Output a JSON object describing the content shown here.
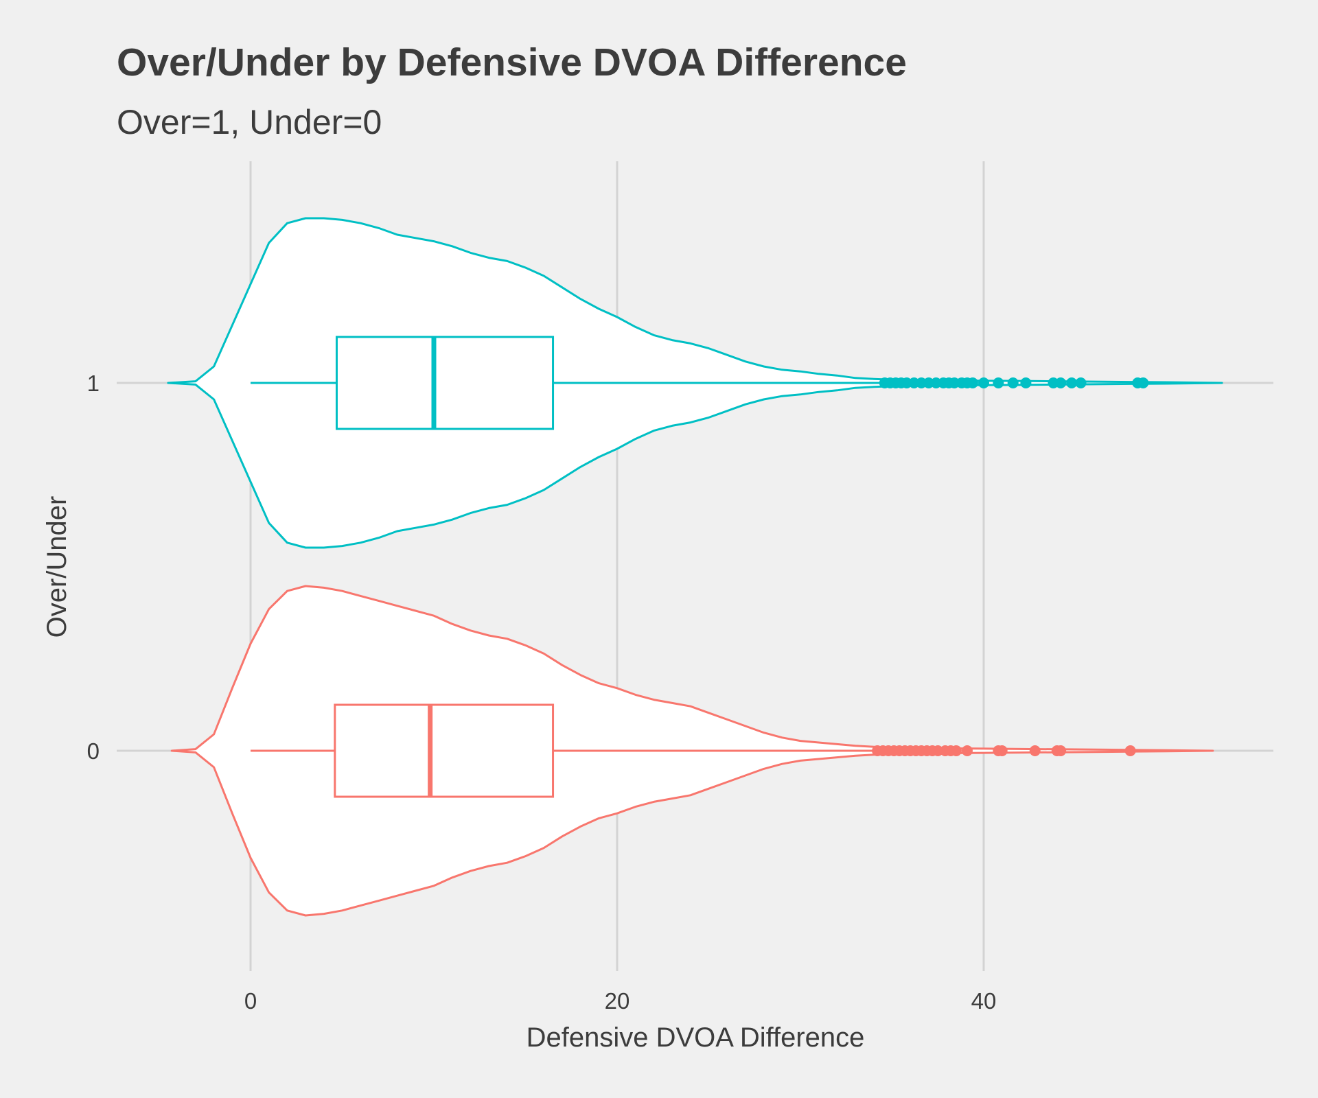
{
  "chart_data": {
    "type": "violin",
    "title": "Over/Under by Defensive DVOA Difference",
    "subtitle": "Over=1, Under=0",
    "xlabel": "Defensive DVOA Difference",
    "ylabel": "Over/Under",
    "xlim": [
      -9,
      56
    ],
    "x_ticks": [
      0,
      20,
      40
    ],
    "x_tick_labels": [
      "0",
      "20",
      "40"
    ],
    "grid": true,
    "legend": "none",
    "categories": [
      "1",
      "0"
    ],
    "series": [
      {
        "name": "1",
        "color": "#00bfc4",
        "box": {
          "whisker_low": 0,
          "q1": 4.7,
          "median": 10.0,
          "q3": 16.5,
          "whisker_high": 34.5
        },
        "outliers": [
          34.6,
          34.9,
          35.2,
          35.5,
          35.8,
          36.2,
          36.6,
          37.0,
          37.4,
          37.8,
          38.1,
          38.4,
          38.8,
          39.1,
          39.4,
          40.0,
          40.8,
          41.6,
          42.3,
          43.8,
          44.2,
          44.8,
          45.3,
          48.4,
          48.7
        ],
        "density": {
          "x": [
            -4.5,
            -3,
            -2,
            -1,
            0,
            1,
            2,
            3,
            4,
            5,
            6,
            7,
            8,
            9,
            10,
            11,
            12,
            13,
            14,
            15,
            16,
            17,
            18,
            19,
            20,
            21,
            22,
            23,
            24,
            25,
            26,
            27,
            28,
            29,
            30,
            31,
            32,
            33,
            34,
            35,
            36,
            38,
            40,
            42,
            44,
            46,
            48,
            50,
            53
          ],
          "width": [
            0,
            0.01,
            0.1,
            0.35,
            0.6,
            0.85,
            0.97,
            1.0,
            1.0,
            0.99,
            0.97,
            0.94,
            0.9,
            0.88,
            0.86,
            0.83,
            0.79,
            0.76,
            0.74,
            0.7,
            0.65,
            0.58,
            0.51,
            0.45,
            0.4,
            0.34,
            0.29,
            0.26,
            0.24,
            0.21,
            0.17,
            0.13,
            0.1,
            0.08,
            0.07,
            0.055,
            0.045,
            0.03,
            0.024,
            0.02,
            0.018,
            0.015,
            0.013,
            0.012,
            0.01,
            0.008,
            0.006,
            0.004,
            0
          ]
        }
      },
      {
        "name": "0",
        "color": "#f8766d",
        "box": {
          "whisker_low": 0,
          "q1": 4.6,
          "median": 9.8,
          "q3": 16.5,
          "whisker_high": 34.0
        },
        "outliers": [
          34.2,
          34.5,
          34.8,
          35.1,
          35.4,
          35.7,
          36.0,
          36.3,
          36.6,
          36.9,
          37.2,
          37.5,
          37.9,
          38.2,
          38.5,
          39.1,
          40.8,
          41.0,
          42.8,
          44.0,
          44.2,
          48.0
        ],
        "density": {
          "x": [
            -4.3,
            -3,
            -2,
            -1,
            0,
            1,
            2,
            3,
            4,
            5,
            6,
            7,
            8,
            9,
            10,
            11,
            12,
            13,
            14,
            15,
            16,
            17,
            18,
            19,
            20,
            21,
            22,
            23,
            24,
            25,
            26,
            27,
            28,
            29,
            30,
            31,
            32,
            33,
            34,
            35,
            36,
            38,
            40,
            42,
            44,
            46,
            48,
            50,
            52.5
          ],
          "width": [
            0,
            0.01,
            0.1,
            0.38,
            0.65,
            0.86,
            0.97,
            1.0,
            0.99,
            0.97,
            0.94,
            0.91,
            0.88,
            0.85,
            0.82,
            0.77,
            0.73,
            0.7,
            0.68,
            0.64,
            0.59,
            0.52,
            0.46,
            0.41,
            0.38,
            0.34,
            0.31,
            0.29,
            0.27,
            0.23,
            0.19,
            0.15,
            0.11,
            0.08,
            0.06,
            0.05,
            0.04,
            0.03,
            0.024,
            0.02,
            0.018,
            0.015,
            0.013,
            0.011,
            0.009,
            0.007,
            0.005,
            0.003,
            0
          ]
        }
      }
    ]
  }
}
